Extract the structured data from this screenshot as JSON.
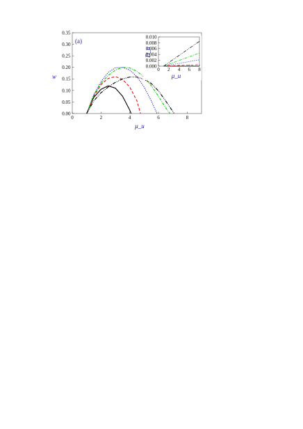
{
  "chart_data": [
    {
      "type": "line",
      "panel_label": "(a)",
      "xlabel": "μ_u",
      "ylabel": "w",
      "xlim": [
        0,
        9
      ],
      "ylim": [
        0,
        0.35
      ],
      "xticks": [
        "0",
        "2",
        "4",
        "6",
        "8"
      ],
      "yticks": [
        "0.00",
        "0.05",
        "0.10",
        "0.15",
        "0.20",
        "0.25",
        "0.30",
        "0.35"
      ],
      "grid": false,
      "series": [
        {
          "style": "solid",
          "color": "#000000",
          "x": [
            1,
            1.5,
            2,
            2.5,
            3,
            3.5,
            4,
            4.1
          ],
          "y": [
            0,
            0.07,
            0.105,
            0.12,
            0.11,
            0.075,
            0.015,
            0
          ]
        },
        {
          "style": "dashed",
          "color": "#e01010",
          "x": [
            1,
            1.5,
            2,
            2.5,
            3,
            3.5,
            4,
            4.5,
            4.75
          ],
          "y": [
            0,
            0.075,
            0.125,
            0.152,
            0.16,
            0.148,
            0.115,
            0.055,
            0
          ]
        },
        {
          "style": "dotted",
          "color": "#1a1ad0",
          "x": [
            1,
            1.5,
            2,
            2.5,
            3,
            3.5,
            4,
            4.5,
            5,
            5.5,
            5.9
          ],
          "y": [
            0,
            0.082,
            0.138,
            0.178,
            0.198,
            0.2,
            0.188,
            0.16,
            0.115,
            0.055,
            0
          ]
        },
        {
          "style": "dash-dot",
          "color": "#10cc10",
          "x": [
            1,
            1.5,
            2,
            2.5,
            3,
            3.5,
            4,
            4.5,
            5,
            5.5,
            6,
            6.5,
            6.8
          ],
          "y": [
            0,
            0.08,
            0.13,
            0.165,
            0.188,
            0.2,
            0.198,
            0.183,
            0.158,
            0.12,
            0.075,
            0.025,
            0
          ]
        },
        {
          "style": "dash-dot-dot",
          "color": "#000000",
          "x": [
            1,
            1.5,
            2,
            2.5,
            3,
            3.5,
            4,
            4.5,
            5,
            5.5,
            6,
            6.5,
            7.1
          ],
          "y": [
            0,
            0.055,
            0.09,
            0.115,
            0.135,
            0.15,
            0.158,
            0.158,
            0.148,
            0.13,
            0.098,
            0.055,
            0
          ]
        }
      ]
    },
    {
      "type": "line",
      "inset": true,
      "xlabel": "μ_u",
      "ylabel": "D_u",
      "xlim": [
        0,
        8
      ],
      "ylim": [
        0,
        0.01
      ],
      "xticks": [
        "0",
        "2",
        "4",
        "6",
        "8"
      ],
      "yticks": [
        "0.000",
        "0.002",
        "0.004",
        "0.006",
        "0.008",
        "0.010"
      ],
      "grid": false,
      "series": [
        {
          "style": "solid",
          "color": "#000000",
          "x": [
            1,
            8
          ],
          "y": [
            0,
            0
          ]
        },
        {
          "style": "dashed",
          "color": "#e01010",
          "x": [
            1,
            8
          ],
          "y": [
            0,
            0.0005
          ]
        },
        {
          "style": "dotted",
          "color": "#1a1ad0",
          "x": [
            1,
            8
          ],
          "y": [
            0,
            0.0022
          ]
        },
        {
          "style": "dash-dot",
          "color": "#10cc10",
          "x": [
            1,
            8
          ],
          "y": [
            0,
            0.0045
          ]
        },
        {
          "style": "dash-dot-dot",
          "color": "#000000",
          "x": [
            1,
            8
          ],
          "y": [
            0,
            0.0085
          ]
        }
      ]
    }
  ]
}
